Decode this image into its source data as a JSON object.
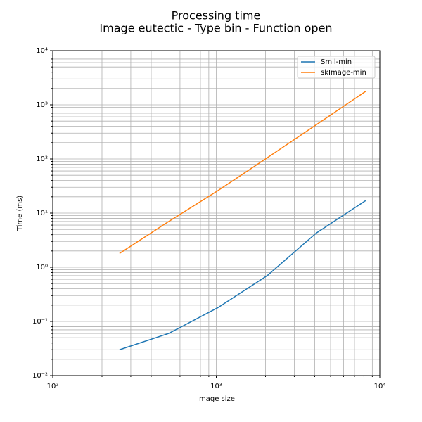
{
  "chart_data": {
    "type": "line",
    "title": "Processing time",
    "subtitle": "Image eutectic - Type bin - Function open",
    "x_label": "Image size",
    "y_label": "Time (ms)",
    "x": [
      256,
      512,
      1024,
      2048,
      4096,
      8192
    ],
    "series": [
      {
        "name": "Smil-min",
        "color": "#1f77b4",
        "values": [
          0.03,
          0.06,
          0.18,
          0.7,
          4.3,
          17
        ]
      },
      {
        "name": "skImage-min",
        "color": "#ff7f0e",
        "values": [
          1.8,
          7,
          26,
          105,
          430,
          1770
        ]
      }
    ],
    "log_x": true,
    "log_y": true,
    "xlim": [
      100,
      10000
    ],
    "xticks": [
      {
        "value": 100,
        "label": "10²"
      },
      {
        "value": 1000,
        "label": "10³"
      },
      {
        "value": 10000,
        "label": "10⁴"
      }
    ],
    "ylim": [
      0.01,
      10000
    ],
    "yticks": [
      {
        "value": 0.01,
        "label": "10⁻²"
      },
      {
        "value": 0.1,
        "label": "10⁻¹"
      },
      {
        "value": 1,
        "label": "10⁰"
      },
      {
        "value": 10,
        "label": "10¹"
      },
      {
        "value": 100,
        "label": "10²"
      },
      {
        "value": 1000,
        "label": "10³"
      },
      {
        "value": 10000,
        "label": "10⁴"
      }
    ],
    "grid": "both",
    "legend": "upper right"
  }
}
